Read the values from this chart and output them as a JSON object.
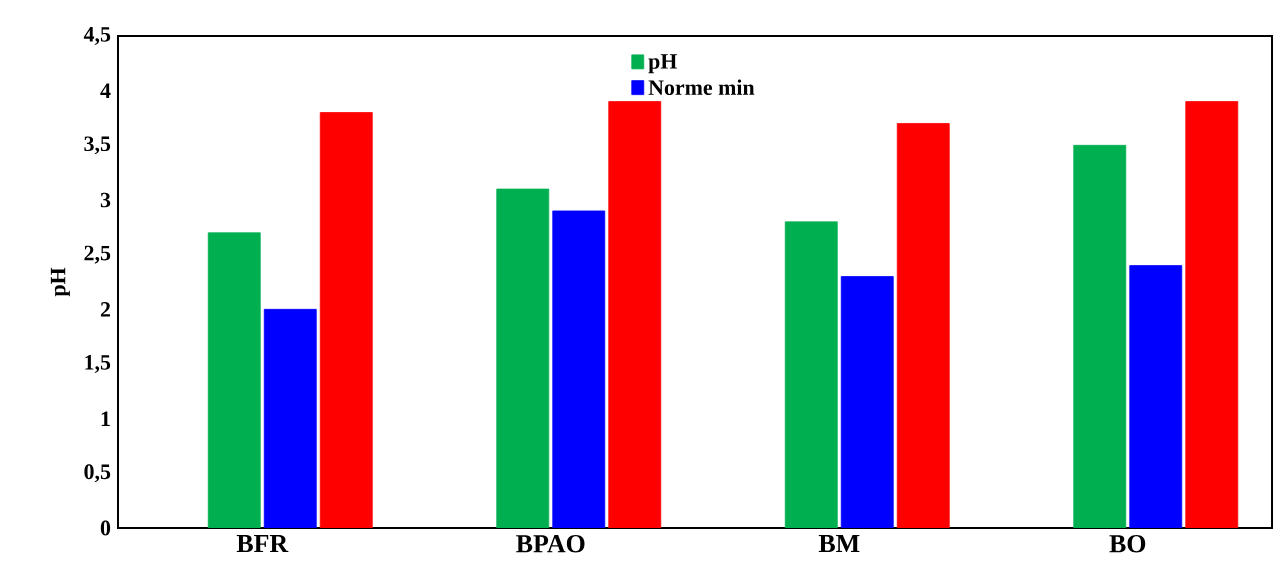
{
  "chart_data": {
    "type": "bar",
    "ylabel": "pH",
    "categories": [
      "BFR",
      "BPAO",
      "BM",
      "BO"
    ],
    "series": [
      {
        "name": "pH",
        "color": "#00b050",
        "values": [
          2.7,
          3.1,
          2.8,
          3.5
        ]
      },
      {
        "name": "Norme min",
        "color": "#0000ff",
        "values": [
          2.0,
          2.9,
          2.3,
          2.4
        ]
      },
      {
        "color": "#ff0000",
        "values": [
          3.8,
          3.9,
          3.7,
          3.9
        ]
      }
    ],
    "ylim": [
      0,
      4.5
    ],
    "yticks": [
      {
        "value": 0,
        "label": "0"
      },
      {
        "value": 0.5,
        "label": "0,5"
      },
      {
        "value": 1,
        "label": "1"
      },
      {
        "value": 1.5,
        "label": "1,5"
      },
      {
        "value": 2,
        "label": "2"
      },
      {
        "value": 2.5,
        "label": "2,5"
      },
      {
        "value": 3,
        "label": "3"
      },
      {
        "value": 3.5,
        "label": "3,5"
      },
      {
        "value": 4,
        "label": "4"
      },
      {
        "value": 4.5,
        "label": "4,5"
      }
    ],
    "grid": false,
    "legend": "top"
  }
}
